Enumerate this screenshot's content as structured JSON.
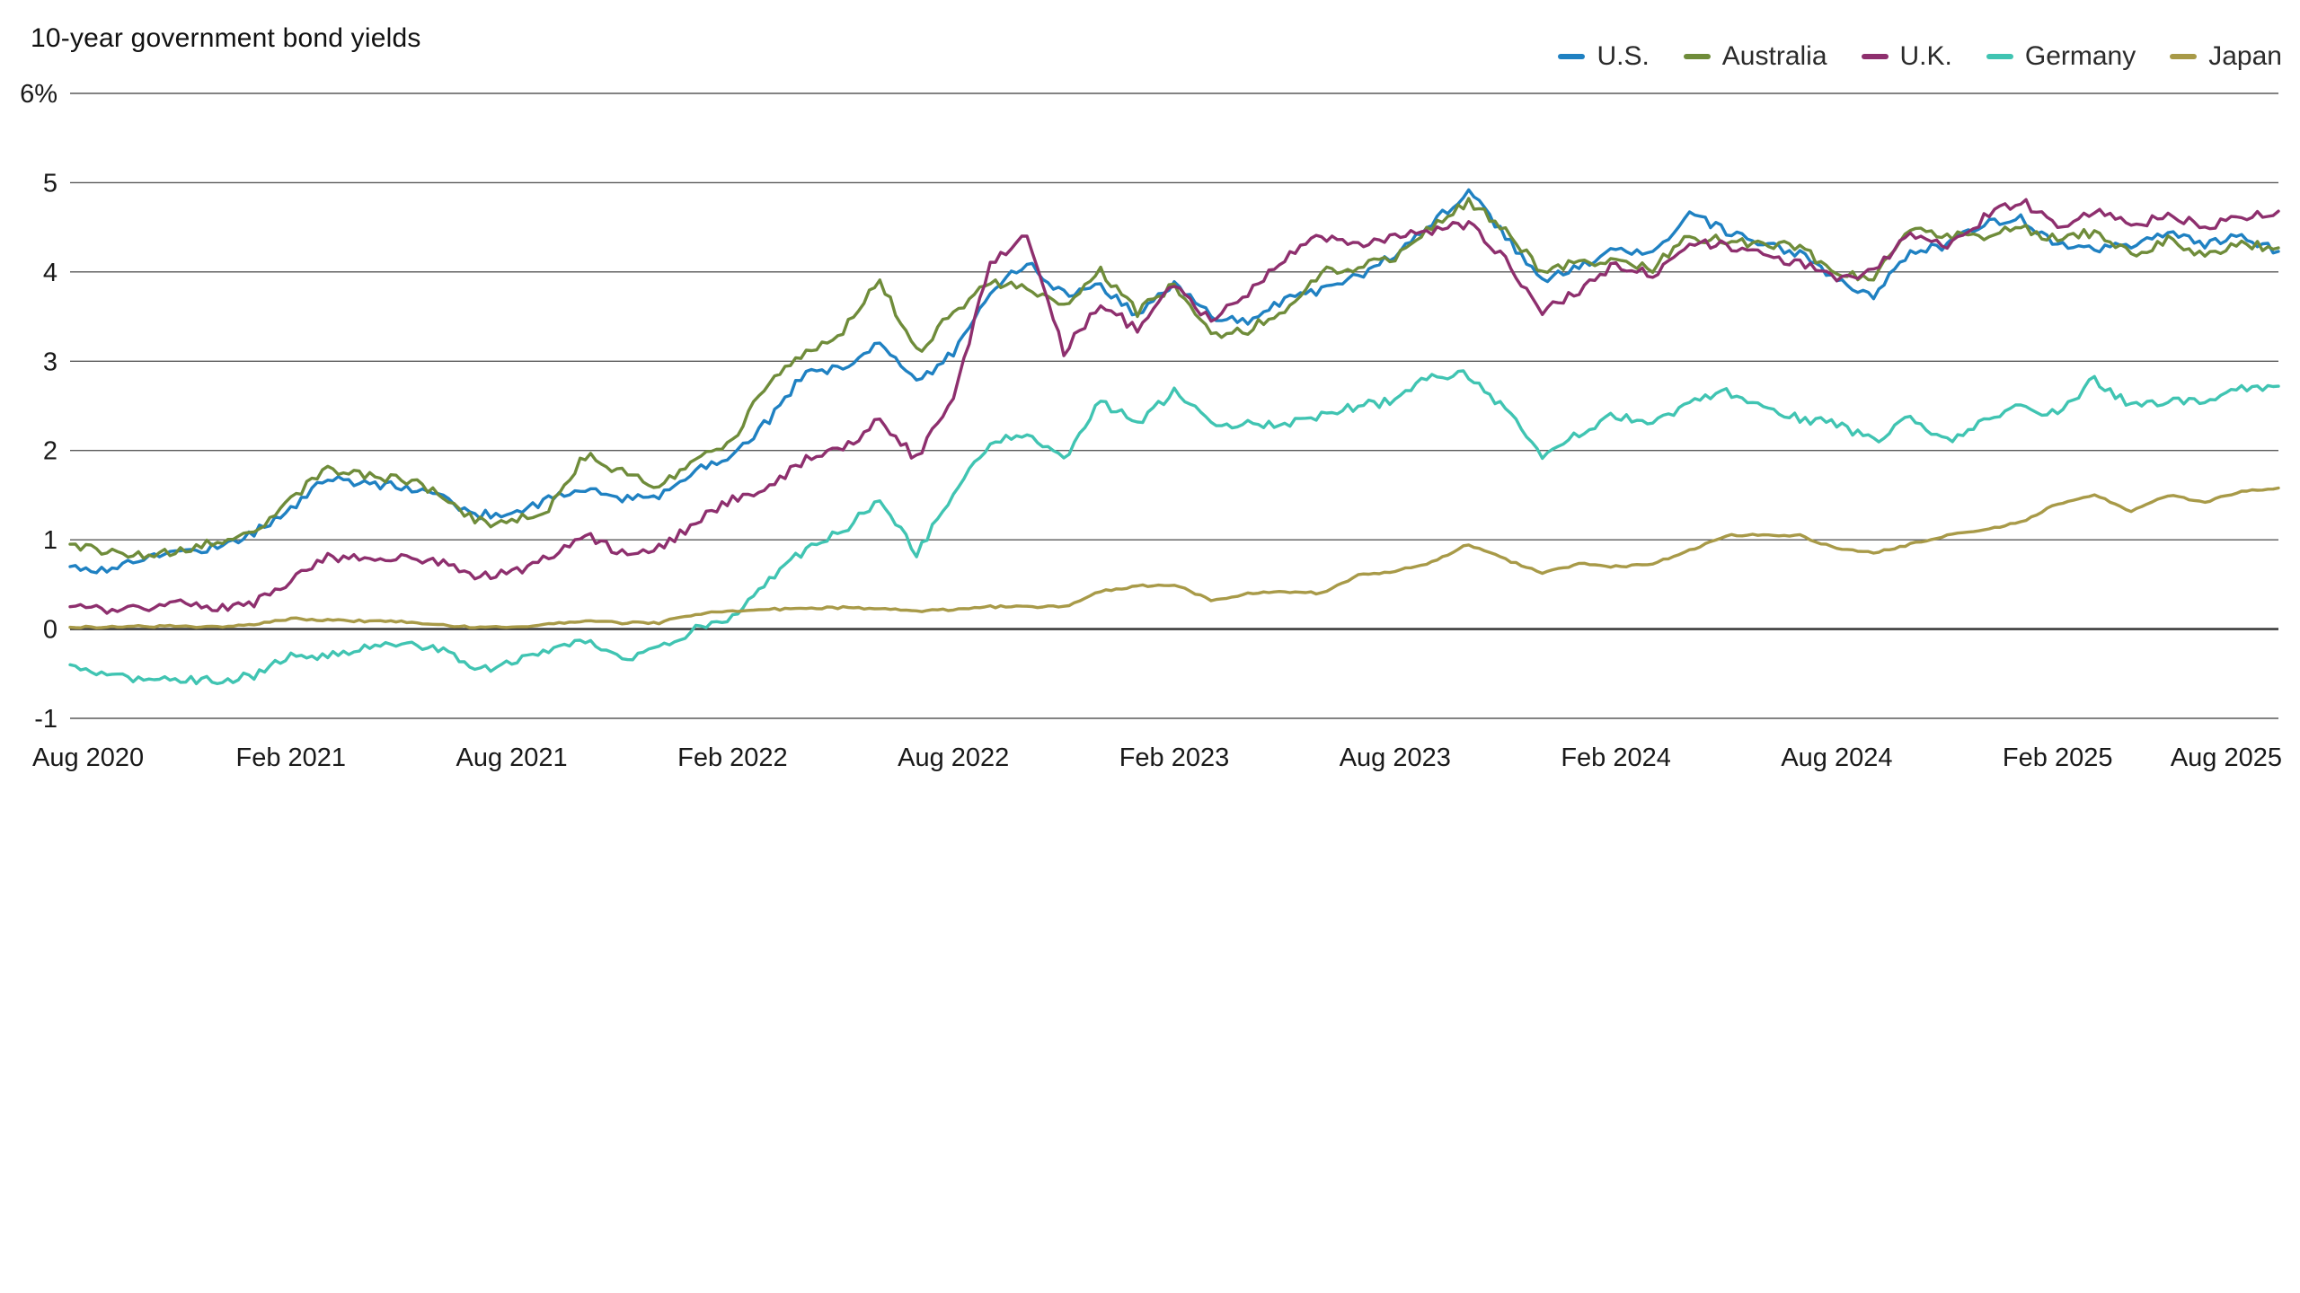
{
  "chart_data": {
    "type": "line",
    "title": "10-year government bond yields",
    "xlabel": "",
    "ylabel": "",
    "ylim": [
      -1,
      6
    ],
    "grid": "horizontal-only",
    "legend_position": "top-right",
    "x_start": "Aug 2020",
    "x_end": "Aug 2025",
    "x_frequency": "monthly",
    "y_ticks": [
      {
        "value": 6,
        "label": "6%"
      },
      {
        "value": 5,
        "label": "5"
      },
      {
        "value": 4,
        "label": "4"
      },
      {
        "value": 3,
        "label": "3"
      },
      {
        "value": 2,
        "label": "2"
      },
      {
        "value": 1,
        "label": "1"
      },
      {
        "value": 0,
        "label": "0"
      },
      {
        "value": -1,
        "label": "-1"
      }
    ],
    "x_ticks": [
      {
        "month_index": 0,
        "label": "Aug 2020"
      },
      {
        "month_index": 6,
        "label": "Feb 2021"
      },
      {
        "month_index": 12,
        "label": "Aug 2021"
      },
      {
        "month_index": 18,
        "label": "Feb 2022"
      },
      {
        "month_index": 24,
        "label": "Aug 2022"
      },
      {
        "month_index": 30,
        "label": "Feb 2023"
      },
      {
        "month_index": 36,
        "label": "Aug 2023"
      },
      {
        "month_index": 42,
        "label": "Feb 2024"
      },
      {
        "month_index": 48,
        "label": "Aug 2024"
      },
      {
        "month_index": 54,
        "label": "Feb 2025"
      },
      {
        "month_index": 60,
        "label": "Aug 2025"
      }
    ],
    "colors": {
      "gridline": "#5a5a5a",
      "zero_line": "#3d3d3d",
      "tick_text": "#191919"
    },
    "series": [
      {
        "name": "U.S.",
        "color": "#1f81c2",
        "values": [
          0.7,
          0.66,
          0.8,
          0.87,
          0.92,
          1.08,
          1.35,
          1.7,
          1.62,
          1.6,
          1.5,
          1.28,
          1.3,
          1.45,
          1.58,
          1.45,
          1.48,
          1.8,
          1.95,
          2.35,
          2.9,
          2.9,
          3.25,
          2.75,
          3.1,
          3.8,
          4.1,
          3.75,
          3.85,
          3.5,
          3.9,
          3.5,
          3.45,
          3.7,
          3.8,
          3.95,
          4.2,
          4.55,
          4.9,
          4.4,
          3.9,
          4.05,
          4.25,
          4.2,
          4.65,
          4.45,
          4.3,
          4.2,
          3.9,
          3.7,
          4.25,
          4.3,
          4.55,
          4.6,
          4.3,
          4.25,
          4.3,
          4.45,
          4.3,
          4.4,
          4.23
        ]
      },
      {
        "name": "Australia",
        "color": "#6f8c3a",
        "values": [
          0.95,
          0.88,
          0.82,
          0.9,
          0.98,
          1.1,
          1.45,
          1.8,
          1.72,
          1.68,
          1.55,
          1.2,
          1.2,
          1.35,
          1.95,
          1.75,
          1.6,
          1.9,
          2.1,
          2.8,
          3.1,
          3.35,
          3.9,
          3.1,
          3.55,
          3.9,
          3.8,
          3.6,
          4.0,
          3.55,
          3.85,
          3.3,
          3.35,
          3.6,
          4.0,
          4.05,
          4.15,
          4.5,
          4.8,
          4.45,
          4.0,
          4.1,
          4.15,
          4.05,
          4.4,
          4.35,
          4.3,
          4.3,
          3.95,
          3.95,
          4.45,
          4.4,
          4.4,
          4.5,
          4.35,
          4.45,
          4.2,
          4.35,
          4.2,
          4.3,
          4.27
        ]
      },
      {
        "name": "U.K.",
        "color": "#8e2f6e",
        "values": [
          0.25,
          0.2,
          0.25,
          0.32,
          0.22,
          0.3,
          0.55,
          0.8,
          0.8,
          0.82,
          0.75,
          0.58,
          0.62,
          0.8,
          1.05,
          0.85,
          0.9,
          1.2,
          1.45,
          1.6,
          1.9,
          2.0,
          2.35,
          1.9,
          2.6,
          4.1,
          4.4,
          3.1,
          3.65,
          3.35,
          3.85,
          3.45,
          3.75,
          4.15,
          4.4,
          4.3,
          4.4,
          4.45,
          4.55,
          4.15,
          3.55,
          3.8,
          4.1,
          3.95,
          4.35,
          4.3,
          4.2,
          4.1,
          3.95,
          4.0,
          4.45,
          4.25,
          4.6,
          4.8,
          4.5,
          4.7,
          4.5,
          4.65,
          4.5,
          4.6,
          4.68
        ]
      },
      {
        "name": "Germany",
        "color": "#40c4b2",
        "values": [
          -0.4,
          -0.5,
          -0.6,
          -0.56,
          -0.58,
          -0.52,
          -0.3,
          -0.3,
          -0.22,
          -0.15,
          -0.22,
          -0.45,
          -0.4,
          -0.22,
          -0.12,
          -0.35,
          -0.2,
          0.0,
          0.15,
          0.55,
          0.9,
          1.1,
          1.45,
          0.85,
          1.5,
          2.1,
          2.15,
          1.9,
          2.55,
          2.3,
          2.65,
          2.3,
          2.3,
          2.3,
          2.4,
          2.5,
          2.55,
          2.85,
          2.85,
          2.45,
          1.95,
          2.2,
          2.4,
          2.3,
          2.55,
          2.65,
          2.5,
          2.35,
          2.3,
          2.1,
          2.4,
          2.1,
          2.35,
          2.5,
          2.4,
          2.8,
          2.5,
          2.55,
          2.55,
          2.7,
          2.72
        ]
      },
      {
        "name": "Japan",
        "color": "#a89a48",
        "values": [
          0.02,
          0.02,
          0.03,
          0.03,
          0.02,
          0.05,
          0.12,
          0.1,
          0.09,
          0.08,
          0.05,
          0.02,
          0.02,
          0.05,
          0.09,
          0.07,
          0.07,
          0.17,
          0.2,
          0.22,
          0.23,
          0.24,
          0.23,
          0.2,
          0.22,
          0.25,
          0.25,
          0.25,
          0.42,
          0.48,
          0.5,
          0.32,
          0.4,
          0.42,
          0.4,
          0.6,
          0.65,
          0.75,
          0.95,
          0.78,
          0.63,
          0.73,
          0.7,
          0.73,
          0.88,
          1.05,
          1.05,
          1.05,
          0.9,
          0.85,
          0.95,
          1.05,
          1.1,
          1.2,
          1.4,
          1.5,
          1.32,
          1.5,
          1.42,
          1.55,
          1.58
        ]
      }
    ]
  }
}
